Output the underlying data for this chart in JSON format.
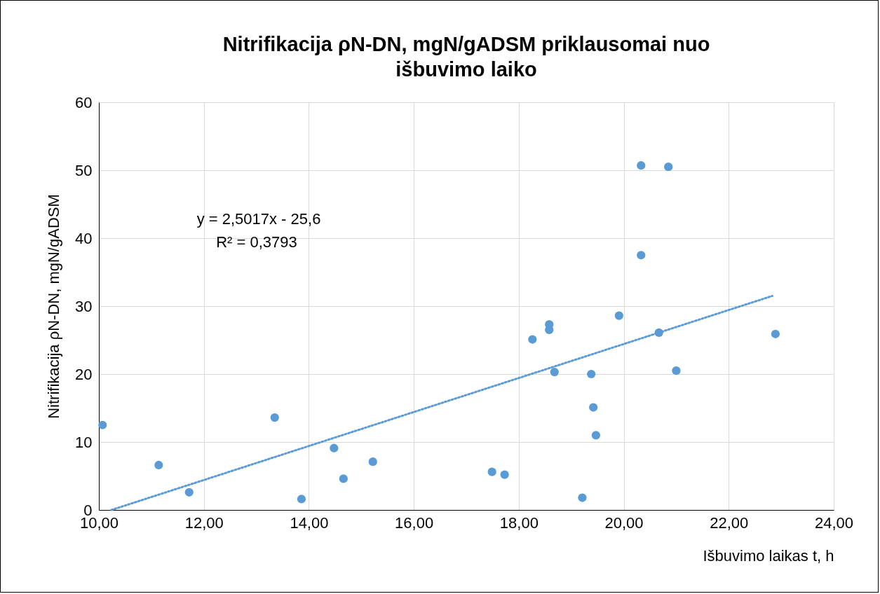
{
  "chart_data": {
    "type": "scatter",
    "title": "Nitrifikacija ρN-DN, mgN/gADSM priklausomai nuo išbuvimo laiko",
    "xlabel": "Išbuvimo laikas t, h",
    "ylabel": "Nitrifikacija ρN-DN, mgN/gADSM",
    "xlim": [
      10,
      24
    ],
    "xticks": [
      {
        "value": 10,
        "label": "10,00"
      },
      {
        "value": 12,
        "label": "12,00"
      },
      {
        "value": 14,
        "label": "14,00"
      },
      {
        "value": 16,
        "label": "16,00"
      },
      {
        "value": 18,
        "label": "18,00"
      },
      {
        "value": 20,
        "label": "20,00"
      },
      {
        "value": 22,
        "label": "22,00"
      },
      {
        "value": 24,
        "label": "24,00"
      }
    ],
    "ylim": [
      0,
      60
    ],
    "yticks": [
      0,
      10,
      20,
      30,
      40,
      50,
      60
    ],
    "grid": true,
    "marker": "circle",
    "series": [
      {
        "color": "#5b9bd5",
        "x": [
          10.07,
          11.14,
          11.72,
          13.35,
          13.86,
          14.48,
          14.66,
          15.22,
          17.49,
          17.73,
          18.26,
          18.58,
          18.58,
          18.68,
          19.21,
          19.38,
          19.42,
          19.47,
          19.91,
          20.33,
          20.33,
          20.67,
          20.85,
          21.0,
          22.89
        ],
        "values": [
          12.5,
          6.6,
          2.6,
          13.6,
          1.6,
          9.1,
          4.6,
          7.1,
          5.6,
          5.2,
          25.1,
          27.3,
          26.5,
          20.3,
          1.8,
          20.0,
          15.1,
          11.0,
          28.6,
          50.7,
          37.5,
          26.1,
          50.5,
          20.5,
          25.9
        ]
      },
      {
        "type": "line",
        "color": "#5b9bd5",
        "line_style": "dotted",
        "marker": "none",
        "x": [
          10.24,
          22.83
        ],
        "values": [
          0,
          31.5
        ]
      }
    ],
    "annotations": [
      "y = 2,5017x - 25,6",
      "R² = 0,3793"
    ]
  }
}
